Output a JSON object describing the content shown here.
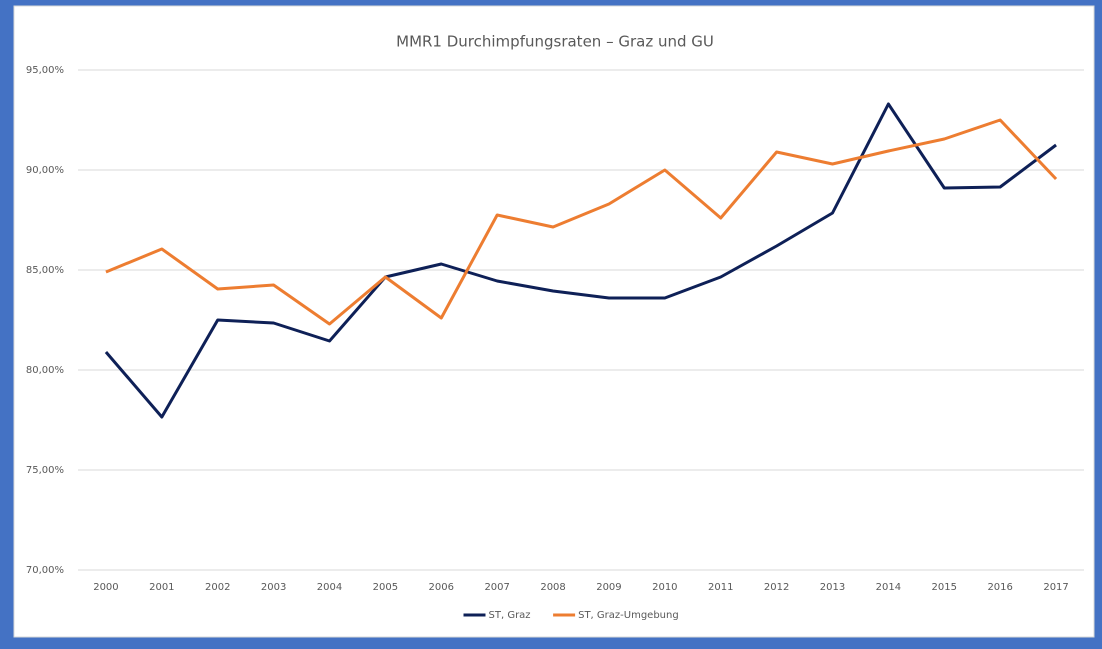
{
  "chart_data": {
    "type": "line",
    "title": "MMR1 Durchimpfungsraten – Graz und GU",
    "categories": [
      "2000",
      "2001",
      "2002",
      "2003",
      "2004",
      "2005",
      "2006",
      "2007",
      "2008",
      "2009",
      "2010",
      "2011",
      "2012",
      "2013",
      "2014",
      "2015",
      "2016",
      "2017"
    ],
    "series": [
      {
        "name": "ST, Graz",
        "color": "#0e2057",
        "values": [
          80.9,
          77.65,
          82.5,
          82.35,
          81.45,
          84.65,
          85.3,
          84.45,
          83.95,
          83.6,
          83.6,
          84.65,
          86.2,
          87.85,
          93.3,
          89.1,
          89.15,
          91.25
        ]
      },
      {
        "name": "ST, Graz-Umgebung",
        "color": "#ed7d31",
        "values": [
          84.9,
          86.05,
          84.05,
          84.25,
          82.3,
          84.65,
          82.6,
          87.75,
          87.15,
          88.3,
          90.0,
          87.6,
          90.9,
          90.3,
          90.95,
          91.55,
          92.5,
          89.55
        ]
      }
    ],
    "ylim": [
      70,
      95
    ],
    "yticks": [
      {
        "value": 70,
        "label": "70,00%"
      },
      {
        "value": 75,
        "label": "75,00%"
      },
      {
        "value": 80,
        "label": "80,00%"
      },
      {
        "value": 85,
        "label": "85,00%"
      },
      {
        "value": 90,
        "label": "90,00%"
      },
      {
        "value": 95,
        "label": "95,00%"
      }
    ],
    "grid": true,
    "legend": "bottom"
  }
}
